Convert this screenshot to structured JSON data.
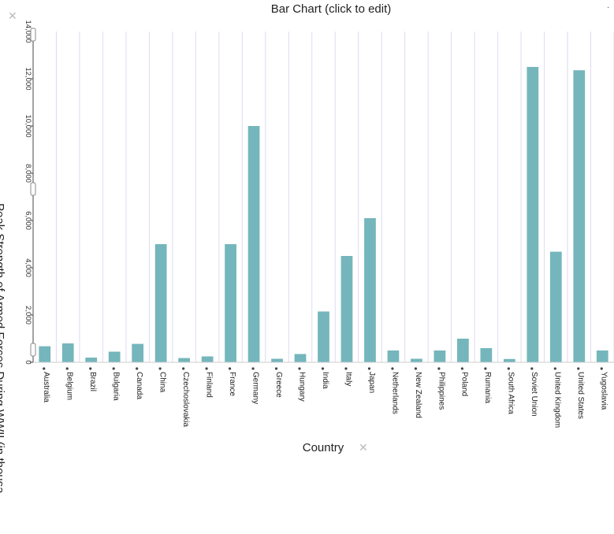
{
  "header": {
    "title": "Bar Chart (click to edit)",
    "corner_mark": "."
  },
  "icons": {
    "y_remove": "close-icon",
    "x_remove": "close-icon",
    "axis_drag_handles": "drag-handle-icon"
  },
  "colors": {
    "bar": "#74b6bb",
    "gridline": "#dcdcf2",
    "axis": "#444444",
    "remove_icon": "#bbbbbb"
  },
  "chart_data": {
    "type": "bar",
    "title": "Bar Chart (click to edit)",
    "xlabel": "Country",
    "ylabel": "Peak Strength of Armed Forces During WWII (in thousa...",
    "ylim": [
      0,
      14000
    ],
    "yticks": [
      "0",
      "2,000",
      "4,000",
      "6,000",
      "8,000",
      "10,000",
      "12,000",
      "14,000"
    ],
    "grid": true,
    "categories": [
      "Australia",
      "Belgium",
      "Brazil",
      "Bulgaria",
      "Canada",
      "China",
      "Czechoslovakia",
      "Finland",
      "France",
      "Germany",
      "Greece",
      "Hungary",
      "India",
      "Italy",
      "Japan",
      "Netherlands",
      "New Zealand",
      "Philippines",
      "Poland",
      "Rumania",
      "South Africa",
      "Soviet Union",
      "United Kingdom",
      "United States",
      "Yugoslavia"
    ],
    "values": [
      680,
      800,
      200,
      450,
      780,
      5000,
      180,
      250,
      5000,
      10000,
      150,
      350,
      2150,
      4500,
      6100,
      500,
      150,
      500,
      1000,
      600,
      140,
      12500,
      4680,
      12360,
      500
    ]
  }
}
